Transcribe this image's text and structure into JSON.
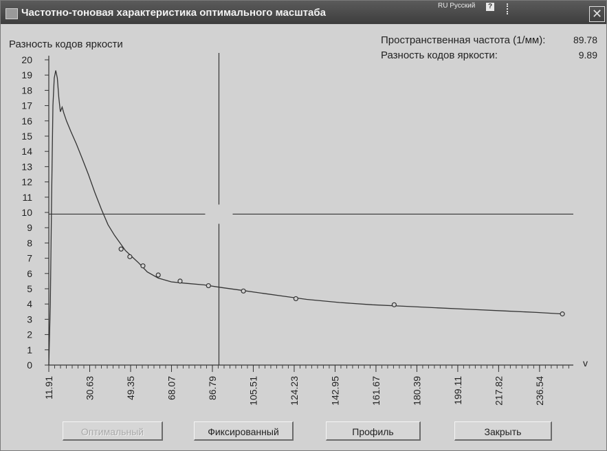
{
  "window": {
    "title": "Частотно-тоновая характеристика оптимального масштаба",
    "language_indicator": "RU Русский",
    "help_icon": "help-icon",
    "close_icon": "close-icon"
  },
  "readout": {
    "freq_label": "Пространственная частота (1/мм):",
    "freq_value": "89.78",
    "diff_label": "Разность кодов яркости:",
    "diff_value": "9.89"
  },
  "chart_data": {
    "type": "line",
    "ylabel": "Разность кодов яркости",
    "xlabel": "",
    "x_ticks": [
      "11.91",
      "30.63",
      "49.35",
      "68.07",
      "86.79",
      "105.51",
      "124.23",
      "142.95",
      "161.67",
      "180.39",
      "199.11",
      "217.82",
      "236.54"
    ],
    "y_ticks": [
      "0",
      "1",
      "2",
      "3",
      "4",
      "5",
      "6",
      "7",
      "8",
      "9",
      "10",
      "11",
      "12",
      "13",
      "14",
      "15",
      "16",
      "17",
      "18",
      "19",
      "20"
    ],
    "xlim": [
      11.91,
      252
    ],
    "ylim": [
      0,
      20
    ],
    "x_axis_arrow": "v",
    "crosshair": {
      "x": 89.78,
      "y": 9.89
    },
    "series": [
      {
        "points": [
          [
            11.9,
            0
          ],
          [
            12.6,
            4
          ],
          [
            13.2,
            11
          ],
          [
            13.8,
            17
          ],
          [
            14.4,
            18.8
          ],
          [
            15.1,
            19.3
          ],
          [
            15.8,
            18.8
          ],
          [
            16.5,
            17.5
          ],
          [
            17.2,
            16.6
          ],
          [
            18,
            16.9
          ],
          [
            18.8,
            16.5
          ],
          [
            20,
            16
          ],
          [
            22,
            15.3
          ],
          [
            24.5,
            14.5
          ],
          [
            27,
            13.6
          ],
          [
            30,
            12.5
          ],
          [
            33,
            11.3
          ],
          [
            36,
            10.2
          ],
          [
            39,
            9.2
          ],
          [
            42,
            8.5
          ],
          [
            45,
            7.9
          ],
          [
            47,
            7.5
          ],
          [
            50,
            7.1
          ],
          [
            53,
            6.7
          ],
          [
            57,
            6.1
          ],
          [
            62,
            5.7
          ],
          [
            68,
            5.45
          ],
          [
            75,
            5.35
          ],
          [
            83,
            5.25
          ],
          [
            90,
            5.1
          ],
          [
            100,
            4.9
          ],
          [
            110,
            4.7
          ],
          [
            120,
            4.5
          ],
          [
            130,
            4.3
          ],
          [
            145,
            4.1
          ],
          [
            160,
            3.95
          ],
          [
            175,
            3.85
          ],
          [
            190,
            3.75
          ],
          [
            205,
            3.65
          ],
          [
            220,
            3.55
          ],
          [
            235,
            3.45
          ],
          [
            247,
            3.35
          ]
        ],
        "markers": [
          [
            45,
            7.6
          ],
          [
            49,
            7.1
          ],
          [
            55,
            6.5
          ],
          [
            62,
            5.9
          ],
          [
            72,
            5.5
          ],
          [
            85,
            5.2
          ],
          [
            101,
            4.85
          ],
          [
            125,
            4.35
          ],
          [
            170,
            3.95
          ],
          [
            247,
            3.35
          ]
        ]
      }
    ]
  },
  "buttons": {
    "optimal": "Оптимальный",
    "fixed": "Фиксированный",
    "profile": "Профиль",
    "close": "Закрыть"
  }
}
